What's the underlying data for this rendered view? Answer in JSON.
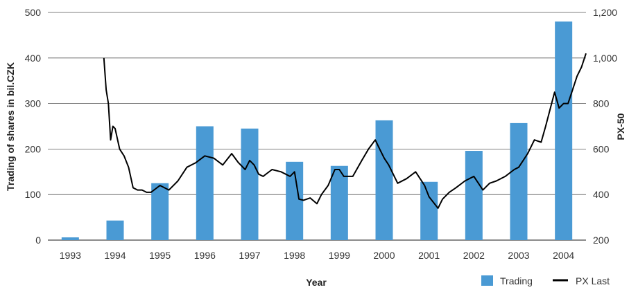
{
  "chart_data": {
    "type": "bar",
    "categories": [
      "1993",
      "1994",
      "1995",
      "1996",
      "1997",
      "1998",
      "1999",
      "2000",
      "2001",
      "2002",
      "2003",
      "2004"
    ],
    "xlabel": "Year",
    "ylabel_left": "Trading of shares in bil.CZK",
    "ylabel_right": "PX-50",
    "ylim_left": [
      0,
      500
    ],
    "yticks_left": [
      "0",
      "100",
      "200",
      "300",
      "400",
      "500"
    ],
    "ylim_right": [
      200,
      1200
    ],
    "yticks_right": [
      "200",
      "400",
      "600",
      "800",
      "1,000",
      "1,200"
    ],
    "grid": true,
    "legend_placement": "bottom-right",
    "series": [
      {
        "name": "Trading",
        "type": "bar",
        "axis": "left",
        "color": "#4a9ad4",
        "values": [
          6,
          43,
          125,
          250,
          245,
          172,
          163,
          263,
          128,
          196,
          257,
          480
        ]
      },
      {
        "name": "PX Last",
        "type": "line",
        "axis": "right",
        "color": "#000000",
        "x": [
          1993.75,
          1993.8,
          1993.85,
          1993.9,
          1993.95,
          1994.0,
          1994.1,
          1994.2,
          1994.3,
          1994.4,
          1994.5,
          1994.6,
          1994.7,
          1994.8,
          1995.0,
          1995.2,
          1995.4,
          1995.6,
          1995.8,
          1996.0,
          1996.2,
          1996.4,
          1996.6,
          1996.75,
          1996.9,
          1997.0,
          1997.1,
          1997.2,
          1997.3,
          1997.5,
          1997.7,
          1997.9,
          1998.0,
          1998.1,
          1998.2,
          1998.35,
          1998.5,
          1998.6,
          1998.75,
          1998.9,
          1999.0,
          1999.1,
          1999.3,
          1999.5,
          1999.65,
          1999.8,
          1999.9,
          2000.0,
          2000.1,
          2000.3,
          2000.5,
          2000.7,
          2000.9,
          2001.0,
          2001.2,
          2001.3,
          2001.45,
          2001.6,
          2001.8,
          2002.0,
          2002.2,
          2002.35,
          2002.5,
          2002.7,
          2002.9,
          2003.0,
          2003.2,
          2003.35,
          2003.5,
          2003.6,
          2003.8,
          2003.9,
          2004.0,
          2004.1,
          2004.2,
          2004.3,
          2004.4,
          2004.5
        ],
        "values": [
          1000,
          860,
          800,
          640,
          700,
          690,
          600,
          570,
          520,
          430,
          420,
          420,
          410,
          410,
          440,
          420,
          460,
          520,
          540,
          570,
          560,
          530,
          580,
          540,
          510,
          550,
          530,
          490,
          480,
          510,
          500,
          480,
          500,
          380,
          375,
          385,
          360,
          400,
          440,
          510,
          510,
          480,
          480,
          550,
          600,
          640,
          600,
          560,
          530,
          450,
          470,
          500,
          440,
          390,
          340,
          380,
          410,
          430,
          460,
          480,
          420,
          450,
          460,
          480,
          510,
          520,
          580,
          640,
          630,
          700,
          850,
          780,
          800,
          800,
          860,
          920,
          960,
          1020
        ]
      }
    ]
  },
  "legend": {
    "trading_label": "Trading",
    "px_label": "PX Last"
  }
}
